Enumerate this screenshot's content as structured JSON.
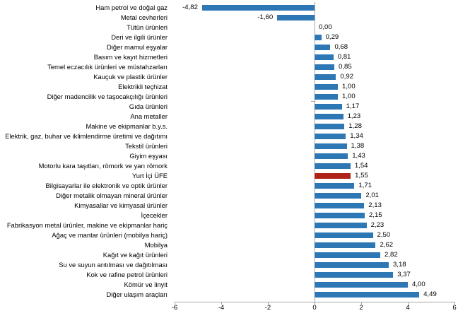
{
  "chart_data": {
    "type": "bar",
    "orientation": "horizontal",
    "title": "",
    "xlabel": "",
    "ylabel": "",
    "xlim": [
      -6,
      6
    ],
    "grid": "off",
    "legend": "none",
    "x_ticks": [
      -6,
      -4,
      -2,
      0,
      2,
      4,
      6
    ],
    "x_tick_labels": [
      "-6",
      "-4",
      "-2",
      "0",
      "2",
      "4",
      "6"
    ],
    "categories": [
      "Ham petrol ve doğal gaz",
      "Metal cevherleri",
      "Tütün ürünleri",
      "Deri ve ilgili ürünler",
      "Diğer mamul eşyalar",
      "Basım ve kayıt hizmetleri",
      "Temel eczacılık ürünleri ve müstahzarları",
      "Kauçuk ve plastik ürünler",
      "Elektrikli teçhizat",
      "Diğer madencilik ve taşocakçılığı ürünleri",
      "Gıda ürünleri",
      "Ana metaller",
      "Makine ve ekipmanlar b.y.s.",
      "Elektrik, gaz, buhar ve iklimlendirme üretimi ve dağıtımı",
      "Tekstil ürünleri",
      "Giyim eşyası",
      "Motorlu kara taşıtları, römork ve yarı römork",
      "Yurt İçi ÜFE",
      "Bilgisayarlar ile elektronik ve optik ürünler",
      "Diğer metalik olmayan mineral ürünler",
      "Kimyasallar ve kimyasal ürünler",
      "İçecekler",
      "Fabrikasyon metal ürünler, makine ve ekipmanlar hariç",
      "Ağaç ve mantar ürünleri (mobilya hariç)",
      "Mobilya",
      "Kağıt ve kağıt ürünleri",
      "Su ve suyun arıtılması ve dağıtılması",
      "Kok ve rafine petrol ürünleri",
      "Kömür ve linyit",
      "Diğer ulaşım araçları"
    ],
    "values": [
      -4.82,
      -1.6,
      0.0,
      0.29,
      0.68,
      0.81,
      0.85,
      0.92,
      1.0,
      1.0,
      1.17,
      1.23,
      1.28,
      1.34,
      1.38,
      1.43,
      1.54,
      1.55,
      1.71,
      2.01,
      2.13,
      2.15,
      2.23,
      2.5,
      2.62,
      2.82,
      3.18,
      3.37,
      4.0,
      4.49
    ],
    "value_labels": [
      "-4,82",
      "-1,60",
      "0,00",
      "0,29",
      "0,68",
      "0,81",
      "0,85",
      "0,92",
      "1,00",
      "1,00",
      "1,17",
      "1,23",
      "1,28",
      "1,34",
      "1,38",
      "1,43",
      "1,54",
      "1,55",
      "1,71",
      "2,01",
      "2,13",
      "2,15",
      "2,23",
      "2,50",
      "2,62",
      "2,82",
      "3,18",
      "3,37",
      "4,00",
      "4,49"
    ],
    "highlight_category": "Yurt İçi ÜFE",
    "highlight_index": 17,
    "bar_color": "#2E77B5",
    "highlight_color": "#B02318",
    "axis_color": "#A6A6A6",
    "text_color": "#000000"
  }
}
